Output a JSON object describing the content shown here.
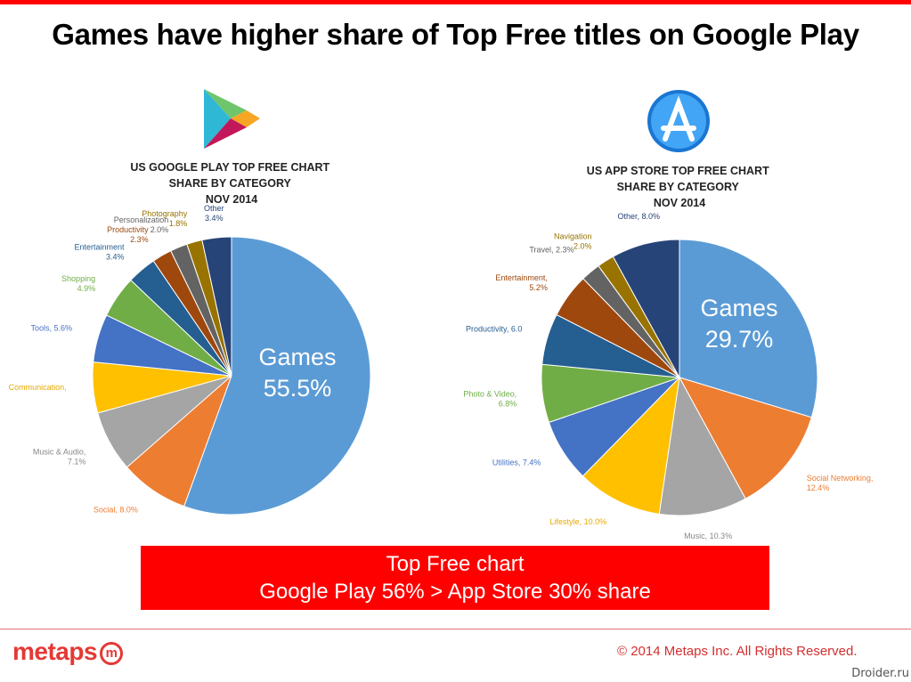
{
  "slide": {
    "title": "Games have higher share of Top Free titles on Google Play",
    "callout_line1": "Top Free chart",
    "callout_line2": "Google Play 56% > App Store 30% share",
    "logo_text": "metaps",
    "logo_mark": "m",
    "copyright": "© 2014 Metaps Inc. All Rights Reserved.",
    "watermark": "Droider.ru",
    "colors": {
      "accent": "#ff0000",
      "brand": "#e53935"
    },
    "icons": [
      "google-play-icon",
      "app-store-icon"
    ]
  },
  "chart_data": [
    {
      "type": "pie",
      "title": [
        "US GOOGLE PLAY TOP FREE CHART",
        "SHARE BY CATEGORY",
        "NOV 2014"
      ],
      "start_angle_deg": 0,
      "slices": [
        {
          "category": "Games",
          "value": 55.5,
          "label": "Games",
          "sublabel": "55.5%",
          "color": "#5b9bd5",
          "inside": true
        },
        {
          "category": "Social",
          "value": 8.0,
          "label": "Social, 8.0%",
          "color": "#ed7d31"
        },
        {
          "category": "Music & Audio",
          "value": 7.1,
          "label": "Music & Audio,",
          "sublabel": "7.1%",
          "color": "#a5a5a5"
        },
        {
          "category": "Communication",
          "value": 5.9,
          "label": "Communication,",
          "color": "#ffc000"
        },
        {
          "category": "Tools",
          "value": 5.6,
          "label": "Tools, 5.6%",
          "color": "#4472c4"
        },
        {
          "category": "Shopping",
          "value": 4.9,
          "label": "Shopping",
          "sublabel": "4.9%",
          "color": "#70ad47"
        },
        {
          "category": "Entertainment",
          "value": 3.4,
          "label": "Entertainment",
          "sublabel": "3.4%",
          "color": "#255e91"
        },
        {
          "category": "Productivity",
          "value": 2.3,
          "label": "Productivity",
          "sublabel": "2.3%",
          "color": "#9e480e"
        },
        {
          "category": "Personalization",
          "value": 2.0,
          "label": "Personalization",
          "sublabel": "2.0%",
          "color": "#636363"
        },
        {
          "category": "Photography",
          "value": 1.8,
          "label": "Photography",
          "sublabel": "1.8%",
          "color": "#997300"
        },
        {
          "category": "Other",
          "value": 3.4,
          "label": "Other",
          "sublabel": "3.4%",
          "color": "#264478"
        }
      ]
    },
    {
      "type": "pie",
      "title": [
        "US APP STORE TOP FREE CHART",
        "SHARE BY CATEGORY",
        "NOV 2014"
      ],
      "start_angle_deg": 0,
      "slices": [
        {
          "category": "Games",
          "value": 29.7,
          "label": "Games",
          "sublabel": "29.7%",
          "color": "#5b9bd5",
          "inside": true
        },
        {
          "category": "Social Networking",
          "value": 12.4,
          "label": "Social Networking,",
          "sublabel": "12.4%",
          "color": "#ed7d31"
        },
        {
          "category": "Music",
          "value": 10.3,
          "label": "Music, 10.3%",
          "color": "#a5a5a5"
        },
        {
          "category": "Lifestyle",
          "value": 10.0,
          "label": "Lifestyle, 10.0%",
          "color": "#ffc000"
        },
        {
          "category": "Utilities",
          "value": 7.4,
          "label": "Utilities, 7.4%",
          "color": "#4472c4"
        },
        {
          "category": "Photo & Video",
          "value": 6.8,
          "label": "Photo & Video,",
          "sublabel": "6.8%",
          "color": "#70ad47"
        },
        {
          "category": "Productivity",
          "value": 6.0,
          "label": "Productivity, 6.0",
          "color": "#255e91"
        },
        {
          "category": "Entertainment",
          "value": 5.2,
          "label": "Entertainment,",
          "sublabel": "5.2%",
          "color": "#9e480e"
        },
        {
          "category": "Travel",
          "value": 2.3,
          "label": "Travel, 2.3%",
          "color": "#636363"
        },
        {
          "category": "Navigation",
          "value": 2.0,
          "label": "Navigation",
          "sublabel": "2.0%",
          "color": "#997300"
        },
        {
          "category": "Other",
          "value": 8.0,
          "label": "Other, 8.0%",
          "color": "#264478"
        }
      ]
    }
  ]
}
